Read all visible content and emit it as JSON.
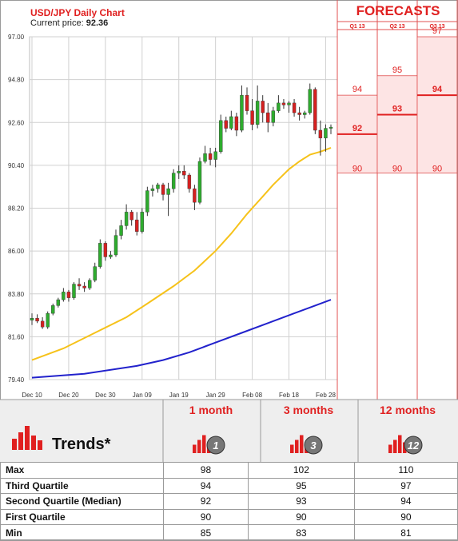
{
  "header": {
    "title": "USD/JPY Daily Chart",
    "price_label": "Current price:",
    "price_value": "92.36",
    "forecasts_title": "FORECASTS"
  },
  "trends": {
    "label": "Trends*",
    "horizons": [
      {
        "label": "1 month",
        "badge": "1"
      },
      {
        "label": "3 months",
        "badge": "3"
      },
      {
        "label": "12 months",
        "badge": "12"
      }
    ],
    "rows": [
      {
        "label": "Max",
        "values": [
          "98",
          "102",
          "110"
        ]
      },
      {
        "label": "Third Quartile",
        "values": [
          "94",
          "95",
          "97"
        ]
      },
      {
        "label": "Second Quartile (Median)",
        "values": [
          "92",
          "93",
          "94"
        ]
      },
      {
        "label": "First Quartile",
        "values": [
          "90",
          "90",
          "90"
        ]
      },
      {
        "label": "Min",
        "values": [
          "85",
          "83",
          "81"
        ]
      }
    ]
  },
  "colors": {
    "up": "#2eab2e",
    "down": "#d42020",
    "ma_short": "#f6c21a",
    "ma_long": "#2222cc",
    "accent": "#e02020",
    "forecast_fill": "#fde4e4"
  },
  "chart_data": [
    {
      "type": "candlestick",
      "title": "USD/JPY Daily Chart",
      "ylim": [
        79.4,
        97.0
      ],
      "y_ticks": [
        "97.00",
        "94.80",
        "92.60",
        "90.40",
        "88.20",
        "86.00",
        "83.80",
        "81.60",
        "79.40"
      ],
      "x_ticks": [
        "Dec 10",
        "Dec 20",
        "Dec 30",
        "Jan 09",
        "Jan 19",
        "Jan 29",
        "Feb 08",
        "Feb 18",
        "Feb 28"
      ],
      "x_tick_index": [
        0,
        7,
        14,
        21,
        28,
        35,
        42,
        49,
        56
      ],
      "grid": true,
      "candles": [
        [
          82.45,
          82.8,
          82.2,
          82.55
        ],
        [
          82.55,
          82.75,
          82.3,
          82.4
        ],
        [
          82.4,
          82.6,
          82.0,
          82.1
        ],
        [
          82.1,
          82.9,
          82.0,
          82.8
        ],
        [
          82.8,
          83.3,
          82.7,
          83.2
        ],
        [
          83.2,
          83.6,
          83.1,
          83.5
        ],
        [
          83.5,
          84.1,
          83.4,
          83.9
        ],
        [
          83.9,
          84.0,
          83.4,
          83.6
        ],
        [
          83.6,
          84.4,
          83.5,
          84.3
        ],
        [
          84.3,
          84.6,
          84.0,
          84.2
        ],
        [
          84.2,
          84.4,
          83.9,
          84.1
        ],
        [
          84.1,
          84.6,
          84.0,
          84.5
        ],
        [
          84.5,
          85.4,
          84.4,
          85.2
        ],
        [
          85.2,
          86.6,
          85.1,
          86.4
        ],
        [
          86.4,
          86.5,
          85.5,
          85.7
        ],
        [
          85.7,
          86.0,
          85.6,
          85.8
        ],
        [
          85.8,
          87.1,
          85.7,
          86.8
        ],
        [
          86.8,
          87.6,
          86.6,
          87.3
        ],
        [
          87.3,
          88.4,
          87.1,
          88.0
        ],
        [
          88.0,
          88.1,
          87.3,
          87.6
        ],
        [
          87.6,
          88.0,
          86.8,
          87.0
        ],
        [
          87.0,
          88.2,
          86.9,
          88.0
        ],
        [
          88.0,
          89.3,
          87.8,
          89.1
        ],
        [
          89.1,
          89.4,
          88.8,
          89.2
        ],
        [
          89.2,
          89.5,
          89.0,
          89.4
        ],
        [
          89.4,
          89.5,
          88.6,
          88.9
        ],
        [
          88.9,
          89.5,
          87.8,
          89.2
        ],
        [
          89.2,
          90.2,
          89.0,
          90.0
        ],
        [
          90.0,
          90.4,
          89.7,
          90.1
        ],
        [
          90.1,
          90.4,
          89.7,
          89.9
        ],
        [
          89.9,
          90.0,
          89.0,
          89.2
        ],
        [
          89.2,
          89.4,
          88.1,
          88.5
        ],
        [
          88.5,
          90.8,
          88.4,
          90.6
        ],
        [
          90.6,
          91.4,
          90.5,
          91.0
        ],
        [
          91.0,
          91.3,
          90.4,
          90.7
        ],
        [
          90.7,
          91.3,
          90.3,
          91.1
        ],
        [
          91.1,
          93.0,
          91.0,
          92.7
        ],
        [
          92.7,
          92.9,
          92.1,
          92.3
        ],
        [
          92.3,
          93.2,
          92.2,
          92.9
        ],
        [
          92.9,
          93.1,
          91.9,
          92.2
        ],
        [
          92.2,
          94.5,
          92.1,
          94.0
        ],
        [
          94.0,
          94.4,
          93.0,
          93.2
        ],
        [
          93.2,
          93.8,
          92.2,
          92.5
        ],
        [
          92.5,
          94.5,
          92.3,
          93.7
        ],
        [
          93.7,
          94.0,
          92.6,
          93.1
        ],
        [
          93.1,
          93.6,
          92.1,
          92.6
        ],
        [
          92.6,
          93.4,
          92.4,
          93.2
        ],
        [
          93.2,
          94.0,
          93.1,
          93.6
        ],
        [
          93.6,
          93.8,
          93.3,
          93.5
        ],
        [
          93.5,
          93.7,
          93.1,
          93.6
        ],
        [
          93.6,
          93.8,
          92.9,
          93.1
        ],
        [
          93.1,
          93.4,
          92.7,
          93.0
        ],
        [
          93.0,
          93.2,
          92.8,
          93.1
        ],
        [
          93.1,
          94.6,
          93.0,
          94.3
        ],
        [
          94.3,
          94.4,
          92.0,
          92.2
        ],
        [
          92.2,
          92.7,
          90.9,
          91.8
        ],
        [
          91.8,
          92.5,
          91.1,
          92.3
        ],
        [
          92.3,
          92.5,
          92.0,
          92.36
        ]
      ],
      "ma_short": [
        [
          0,
          80.4
        ],
        [
          6,
          81.0
        ],
        [
          12,
          81.8
        ],
        [
          18,
          82.6
        ],
        [
          22,
          83.3
        ],
        [
          27,
          84.2
        ],
        [
          31,
          85.0
        ],
        [
          35,
          86.0
        ],
        [
          38,
          86.9
        ],
        [
          41,
          87.9
        ],
        [
          44,
          88.8
        ],
        [
          46,
          89.4
        ],
        [
          49,
          90.2
        ],
        [
          51,
          90.6
        ],
        [
          53,
          90.95
        ],
        [
          55,
          91.1
        ],
        [
          57,
          91.3
        ]
      ],
      "ma_long": [
        [
          0,
          79.5
        ],
        [
          10,
          79.7
        ],
        [
          20,
          80.1
        ],
        [
          25,
          80.4
        ],
        [
          30,
          80.8
        ],
        [
          35,
          81.3
        ],
        [
          40,
          81.8
        ],
        [
          45,
          82.3
        ],
        [
          50,
          82.8
        ],
        [
          57,
          83.5
        ]
      ]
    },
    {
      "type": "range",
      "title": "FORECASTS",
      "categories": [
        "Q1 13",
        "Q2 13",
        "Q3 13"
      ],
      "low": [
        90,
        90,
        90
      ],
      "mid": [
        92,
        93,
        94
      ],
      "high": [
        94,
        95,
        97
      ],
      "labels_low": [
        "90",
        "90",
        "90"
      ],
      "labels_mid": [
        "92",
        "93",
        "94"
      ],
      "labels_high": [
        "94",
        "95",
        "97"
      ]
    }
  ]
}
